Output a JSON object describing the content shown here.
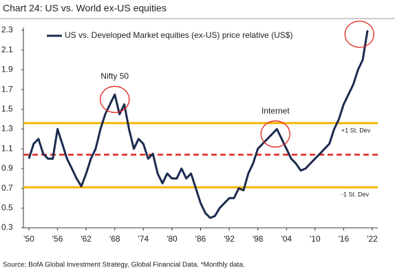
{
  "chart_data": {
    "type": "line",
    "title": "Chart 24: US vs. World ex-US equities",
    "source": "Source: BofA Global Investment Strategy, Global Financial Data. *Monthly data.",
    "x": [
      1950,
      1951,
      1952,
      1953,
      1954,
      1955,
      1956,
      1957,
      1958,
      1959,
      1960,
      1961,
      1962,
      1963,
      1964,
      1965,
      1966,
      1967,
      1968,
      1969,
      1970,
      1971,
      1972,
      1973,
      1974,
      1975,
      1976,
      1977,
      1978,
      1979,
      1980,
      1981,
      1982,
      1983,
      1984,
      1985,
      1986,
      1987,
      1988,
      1989,
      1990,
      1991,
      1992,
      1993,
      1994,
      1995,
      1996,
      1997,
      1998,
      1999,
      2000,
      2001,
      2002,
      2003,
      2004,
      2005,
      2006,
      2007,
      2008,
      2009,
      2010,
      2011,
      2012,
      2013,
      2014,
      2015,
      2016,
      2017,
      2018,
      2019,
      2020,
      2021
    ],
    "series": [
      {
        "name": "US vs. Developed Market equities (ex-US) price relative (US$)",
        "color": "#1b2a4e",
        "values": [
          1.0,
          1.15,
          1.2,
          1.05,
          1.0,
          1.0,
          1.3,
          1.15,
          1.0,
          0.9,
          0.8,
          0.72,
          0.85,
          1.0,
          1.1,
          1.3,
          1.45,
          1.55,
          1.65,
          1.45,
          1.55,
          1.3,
          1.1,
          1.2,
          1.15,
          1.0,
          1.05,
          0.85,
          0.75,
          0.85,
          0.8,
          0.8,
          0.9,
          0.8,
          0.85,
          0.7,
          0.55,
          0.45,
          0.4,
          0.42,
          0.5,
          0.55,
          0.6,
          0.6,
          0.7,
          0.68,
          0.85,
          0.95,
          1.1,
          1.15,
          1.2,
          1.25,
          1.3,
          1.2,
          1.1,
          1.0,
          0.95,
          0.88,
          0.9,
          0.95,
          1.0,
          1.05,
          1.1,
          1.15,
          1.3,
          1.4,
          1.55,
          1.65,
          1.75,
          1.9,
          2.0,
          2.3
        ]
      }
    ],
    "xlim": [
      1950,
      2022
    ],
    "xticks": [
      {
        "value": 1950,
        "label": "'50"
      },
      {
        "value": 1956,
        "label": "'56"
      },
      {
        "value": 1962,
        "label": "'62"
      },
      {
        "value": 1968,
        "label": "'68"
      },
      {
        "value": 1974,
        "label": "'74"
      },
      {
        "value": 1980,
        "label": "'80"
      },
      {
        "value": 1986,
        "label": "'86"
      },
      {
        "value": 1992,
        "label": "'92"
      },
      {
        "value": 1998,
        "label": "'98"
      },
      {
        "value": 2004,
        "label": "'04"
      },
      {
        "value": 2010,
        "label": "'10"
      },
      {
        "value": 2016,
        "label": "'16"
      },
      {
        "value": 2022,
        "label": "'22"
      }
    ],
    "ylim": [
      0.3,
      2.3
    ],
    "yticks": [
      0.3,
      0.5,
      0.7,
      0.9,
      1.1,
      1.3,
      1.5,
      1.7,
      1.9,
      2.1,
      2.3
    ],
    "reference_lines": [
      {
        "value": 1.36,
        "label": "+1 St. Dev",
        "color": "#f5b400"
      },
      {
        "value": 1.04,
        "color": "#e0201c",
        "dashed": true
      },
      {
        "value": 0.71,
        "label": "-1 St. Dev",
        "color": "#f5b400"
      }
    ],
    "annotations": [
      {
        "text": "Nifty 50",
        "x": 1968,
        "y": 1.6
      },
      {
        "text": "Internet",
        "x": 2001.7,
        "y": 1.25
      },
      {
        "x": 2019.3,
        "y": 2.26
      }
    ],
    "annotation_color": "#e0201c"
  }
}
